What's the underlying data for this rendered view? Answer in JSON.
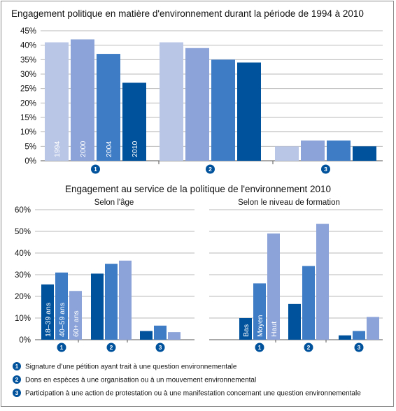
{
  "colors": [
    "#b9c6e6",
    "#8ba3d8",
    "#3e7cc6",
    "#00529c"
  ],
  "chart_data": [
    {
      "type": "bar",
      "title": "Engagement politique en matière d'environnement durant la période de 1994 à 2010",
      "categories": [
        "1",
        "2",
        "3"
      ],
      "series": [
        {
          "name": "1994",
          "values": [
            41,
            41,
            5
          ]
        },
        {
          "name": "2000",
          "values": [
            42,
            39,
            7
          ]
        },
        {
          "name": "2004",
          "values": [
            37,
            35,
            7
          ]
        },
        {
          "name": "2010",
          "values": [
            27,
            34,
            5
          ]
        }
      ],
      "yticks": [
        "0%",
        "5%",
        "10%",
        "15%",
        "20%",
        "25%",
        "30%",
        "35%",
        "40%",
        "45%"
      ],
      "ylim": [
        0,
        45
      ]
    },
    {
      "type": "bar",
      "title": "Engagement au service de la politique de l'environnement 2010",
      "subtitle": "Selon l'âge",
      "categories": [
        "1",
        "2",
        "3"
      ],
      "series": [
        {
          "name": "18–39 ans",
          "values": [
            25.5,
            30.5,
            4
          ]
        },
        {
          "name": "40–59 ans",
          "values": [
            31,
            35,
            6.5
          ]
        },
        {
          "name": "60+ ans",
          "values": [
            22.5,
            36.5,
            3.5
          ]
        }
      ],
      "yticks": [
        "0%",
        "10%",
        "20%",
        "30%",
        "40%",
        "50%",
        "60%"
      ],
      "ylim": [
        0,
        60
      ]
    },
    {
      "type": "bar",
      "subtitle": "Selon le niveau de formation",
      "categories": [
        "1",
        "2",
        "3"
      ],
      "series": [
        {
          "name": "Bas",
          "values": [
            10,
            16.5,
            2
          ]
        },
        {
          "name": "Moyen",
          "values": [
            26,
            34,
            4
          ]
        },
        {
          "name": "Haut",
          "values": [
            49,
            53.5,
            10.5
          ]
        }
      ],
      "ylim": [
        0,
        60
      ]
    }
  ],
  "legend": [
    {
      "num": "1",
      "text": "Signature d’une pétition ayant trait à une question environnementale"
    },
    {
      "num": "2",
      "text": "Dons en espèces à une organisation ou à un mouvement environnemental"
    },
    {
      "num": "3",
      "text": "Participation à une action de protestation ou à une manifestation concernant une question environnementale"
    }
  ]
}
